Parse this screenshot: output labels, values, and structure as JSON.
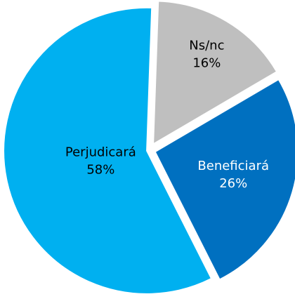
{
  "chart_data": {
    "type": "pie",
    "categories": [
      "Ns/nc",
      "Beneficiará",
      "Perjudicará"
    ],
    "values": [
      16,
      26,
      58
    ],
    "value_labels": [
      "16%",
      "26%",
      "58%"
    ],
    "colors": [
      "#bfbfbf",
      "#0070c0",
      "#00b0f0"
    ],
    "label_colors": [
      "#000000",
      "#ffffff",
      "#000000"
    ]
  }
}
